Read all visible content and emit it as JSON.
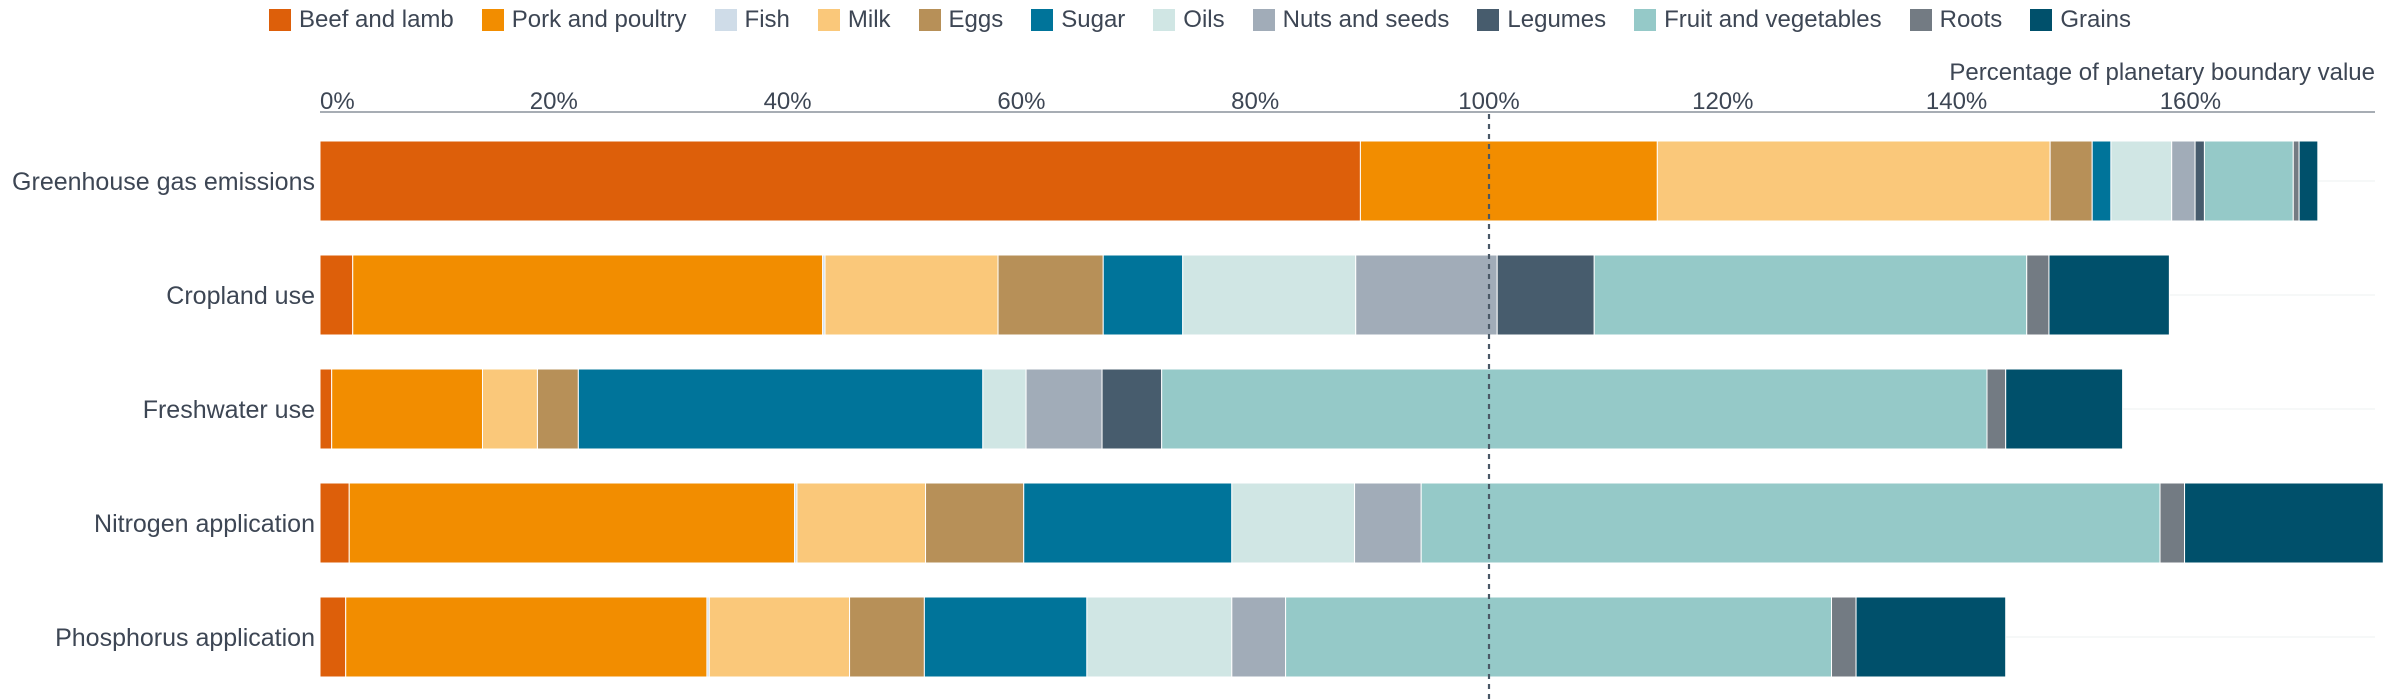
{
  "chart_data": {
    "type": "bar",
    "orientation": "horizontal",
    "stacked": true,
    "axis_title": "Percentage of planetary boundary value",
    "x_ticks": [
      "0%",
      "20%",
      "40%",
      "60%",
      "80%",
      "100%",
      "120%",
      "140%",
      "160%"
    ],
    "xlim": [
      0,
      176
    ],
    "reference_line": 100,
    "legend_position": "top",
    "categories": [
      "Greenhouse gas emissions",
      "Cropland use",
      "Freshwater use",
      "Nitrogen application",
      "Phosphorus application"
    ],
    "series": [
      {
        "name": "Beef and lamb",
        "color": "#dd5f0a",
        "values": [
          89,
          2.8,
          1.0,
          2.5,
          2.2
        ]
      },
      {
        "name": "Pork and poultry",
        "color": "#f28d00",
        "values": [
          25.4,
          40.2,
          12.9,
          38.1,
          30.9
        ]
      },
      {
        "name": "Fish",
        "color": "#cfdce8",
        "values": [
          0,
          0.2,
          0,
          0.2,
          0.2
        ]
      },
      {
        "name": "Milk",
        "color": "#fac87a",
        "values": [
          33.6,
          14.8,
          4.7,
          11.0,
          12.0
        ]
      },
      {
        "name": "Eggs",
        "color": "#b79058",
        "values": [
          3.6,
          9.0,
          3.5,
          8.4,
          6.4
        ]
      },
      {
        "name": "Sugar",
        "color": "#00749a",
        "values": [
          1.6,
          6.8,
          34.6,
          17.8,
          13.9
        ]
      },
      {
        "name": "Oils",
        "color": "#d0e6e4",
        "values": [
          5.2,
          14.8,
          3.7,
          10.5,
          12.4
        ]
      },
      {
        "name": "Nuts and seeds",
        "color": "#a1acb8",
        "values": [
          2.0,
          12.1,
          6.5,
          5.7,
          4.6
        ]
      },
      {
        "name": "Legumes",
        "color": "#475c6d",
        "values": [
          0.8,
          8.3,
          5.1,
          0,
          0
        ]
      },
      {
        "name": "Fruit and vegetables",
        "color": "#95c9c8",
        "values": [
          7.6,
          37.0,
          70.6,
          63.2,
          46.7
        ]
      },
      {
        "name": "Roots",
        "color": "#737b83",
        "values": [
          0.5,
          1.9,
          1.6,
          2.1,
          2.1
        ]
      },
      {
        "name": "Grains",
        "color": "#00506b",
        "values": [
          1.6,
          10.3,
          10.0,
          17.0,
          12.8
        ]
      }
    ]
  }
}
